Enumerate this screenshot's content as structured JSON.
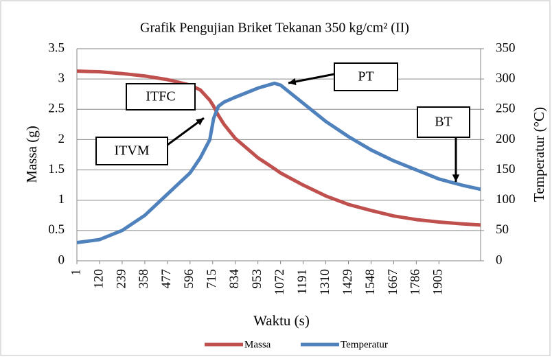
{
  "chart_data": {
    "type": "line",
    "title": "Grafik Pengujian Briket Tekanan 350 kg/cm² (II)",
    "x_label": "Waktu (s)",
    "y_label": "Massa (g)",
    "y2_label": "Temperatur (°C)",
    "x": [
      1,
      120,
      239,
      358,
      477,
      596,
      650,
      700,
      720,
      745,
      775,
      834,
      953,
      1040,
      1072,
      1191,
      1310,
      1429,
      1548,
      1667,
      1786,
      1905,
      2024,
      2124
    ],
    "series": [
      {
        "name": "Massa",
        "color": "#c0504d",
        "values": [
          3.13,
          3.12,
          3.09,
          3.05,
          2.99,
          2.9,
          2.82,
          2.65,
          2.55,
          2.4,
          2.25,
          2.02,
          1.7,
          1.52,
          1.45,
          1.25,
          1.07,
          0.93,
          0.83,
          0.74,
          0.68,
          0.64,
          0.61,
          0.59
        ]
      },
      {
        "name": "Temperatur",
        "color": "#4f81bd",
        "axis": "y2",
        "values": [
          30,
          35,
          50,
          75,
          110,
          145,
          170,
          200,
          235,
          255,
          262,
          270,
          285,
          293,
          290,
          260,
          230,
          205,
          183,
          165,
          150,
          135,
          125,
          118
        ]
      }
    ],
    "xlim": [
      1,
      2124
    ],
    "xticks": [
      1,
      120,
      239,
      358,
      477,
      596,
      715,
      834,
      953,
      1072,
      1191,
      1310,
      1429,
      1548,
      1667,
      1786,
      1905
    ],
    "ylim": [
      0,
      3.5
    ],
    "yticks": [
      0,
      0.5,
      1,
      1.5,
      2,
      2.5,
      3,
      3.5
    ],
    "y2lim": [
      0,
      350
    ],
    "y2ticks": [
      0,
      50,
      100,
      150,
      200,
      250,
      300,
      350
    ],
    "grid": true,
    "legend": "bottom",
    "annotations": [
      "ITFC",
      "ITVM",
      "PT",
      "BT"
    ]
  }
}
